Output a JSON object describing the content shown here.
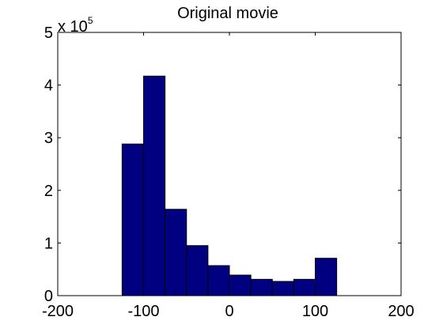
{
  "chart_data": {
    "type": "bar",
    "title": "Original movie",
    "xlabel": "",
    "ylabel": "",
    "xlim": [
      -200,
      200
    ],
    "ylim": [
      0,
      5
    ],
    "y_multiplier_label": {
      "base": "x 10",
      "exponent": "5"
    },
    "x_ticks": [
      -200,
      -100,
      0,
      100,
      200
    ],
    "y_ticks": [
      0,
      1,
      2,
      3,
      4,
      5
    ],
    "bin_width": 25,
    "bins": [
      {
        "start": -125,
        "end": -100,
        "value": 2.88
      },
      {
        "start": -100,
        "end": -75,
        "value": 4.17
      },
      {
        "start": -75,
        "end": -50,
        "value": 1.64
      },
      {
        "start": -50,
        "end": -25,
        "value": 0.95
      },
      {
        "start": -25,
        "end": 0,
        "value": 0.57
      },
      {
        "start": 0,
        "end": 25,
        "value": 0.39
      },
      {
        "start": 25,
        "end": 50,
        "value": 0.31
      },
      {
        "start": 50,
        "end": 75,
        "value": 0.27
      },
      {
        "start": 75,
        "end": 100,
        "value": 0.31
      },
      {
        "start": 100,
        "end": 125,
        "value": 0.71
      }
    ],
    "grid": false,
    "legend": "none",
    "colors": {
      "bar_fill": "#000080",
      "bar_edge": "#000000",
      "axes": "#000000",
      "background": "#ffffff"
    }
  }
}
